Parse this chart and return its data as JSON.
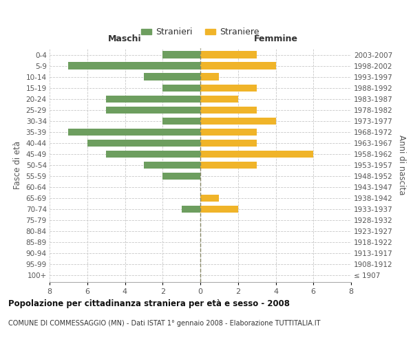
{
  "age_groups": [
    "100+",
    "95-99",
    "90-94",
    "85-89",
    "80-84",
    "75-79",
    "70-74",
    "65-69",
    "60-64",
    "55-59",
    "50-54",
    "45-49",
    "40-44",
    "35-39",
    "30-34",
    "25-29",
    "20-24",
    "15-19",
    "10-14",
    "5-9",
    "0-4"
  ],
  "birth_years": [
    "≤ 1907",
    "1908-1912",
    "1913-1917",
    "1918-1922",
    "1923-1927",
    "1928-1932",
    "1933-1937",
    "1938-1942",
    "1943-1947",
    "1948-1952",
    "1953-1957",
    "1958-1962",
    "1963-1967",
    "1968-1972",
    "1973-1977",
    "1978-1982",
    "1983-1987",
    "1988-1992",
    "1993-1997",
    "1998-2002",
    "2003-2007"
  ],
  "maschi": [
    0,
    0,
    0,
    0,
    0,
    0,
    1,
    0,
    0,
    2,
    3,
    5,
    6,
    7,
    2,
    5,
    5,
    2,
    3,
    7,
    2
  ],
  "femmine": [
    0,
    0,
    0,
    0,
    0,
    0,
    2,
    1,
    0,
    0,
    3,
    6,
    3,
    3,
    4,
    3,
    2,
    3,
    1,
    4,
    3
  ],
  "maschi_color": "#6d9e5f",
  "femmine_color": "#f0b429",
  "background_color": "#ffffff",
  "grid_color": "#c8c8c8",
  "title": "Popolazione per cittadinanza straniera per età e sesso - 2008",
  "subtitle": "COMUNE DI COMMESSAGGIO (MN) - Dati ISTAT 1° gennaio 2008 - Elaborazione TUTTITALIA.IT",
  "ylabel_left": "Fasce di età",
  "ylabel_right": "Anni di nascita",
  "header_left": "Maschi",
  "header_right": "Femmine",
  "legend_stranieri": "Stranieri",
  "legend_straniere": "Straniere",
  "xlim": 8,
  "figsize": [
    6.0,
    5.0
  ],
  "dpi": 100
}
